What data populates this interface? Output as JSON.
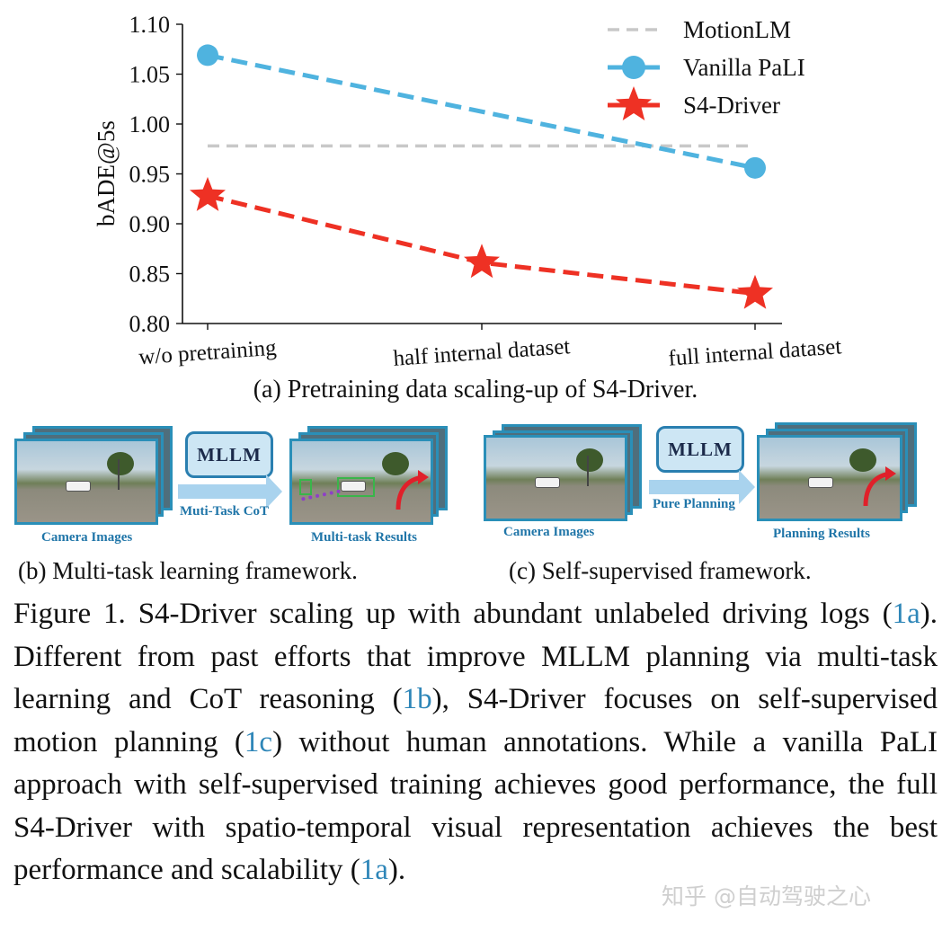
{
  "chart_data": {
    "type": "line",
    "categories": [
      "w/o pretraining",
      "half internal dataset",
      "full internal dataset"
    ],
    "ylabel": "bADE@5s",
    "xlabel": "",
    "ylim": [
      0.8,
      1.1
    ],
    "yticks": [
      "0.80",
      "0.85",
      "0.90",
      "0.95",
      "1.00",
      "1.05",
      "1.10"
    ],
    "series": [
      {
        "name": "MotionLM",
        "style": "dashed-reference",
        "color": "#c8c8c8",
        "values": [
          0.978,
          0.978,
          0.978
        ]
      },
      {
        "name": "Vanilla PaLI",
        "style": "dashed-circle",
        "color": "#4fb3df",
        "points": [
          {
            "category": "w/o pretraining",
            "value": 1.069
          },
          {
            "category": "full internal dataset",
            "value": 0.956
          }
        ]
      },
      {
        "name": "S4-Driver",
        "style": "dashed-star",
        "color": "#ee3124",
        "values": [
          0.928,
          0.861,
          0.83
        ]
      }
    ],
    "caption": "(a) Pretraining data scaling-up of S4-Driver."
  },
  "panel_b": {
    "mllm_label": "MLLM",
    "arrow_label": "Muti-Task CoT",
    "input_label": "Camera Images",
    "output_label": "Multi-task Results",
    "caption": "(b) Multi-task learning framework."
  },
  "panel_c": {
    "mllm_label": "MLLM",
    "arrow_label": "Pure Planning",
    "input_label": "Camera Images",
    "output_label": "Planning Results",
    "caption": "(c) Self-supervised framework."
  },
  "figure_caption": {
    "seg1": "Figure 1.  S4-Driver scaling up with abundant unlabeled driving logs (",
    "ref1": "1a",
    "seg2": ").  Different from past efforts that improve MLLM planning via multi-task learning and CoT reasoning (",
    "ref2": "1b",
    "seg3": "), S4-Driver focuses on self-supervised motion planning (",
    "ref3": "1c",
    "seg4": ") without human annotations.  While a vanilla PaLI approach with self-supervised training achieves good performance, the full S4-Driver with spatio-temporal visual representation achieves the best performance and scalability (",
    "ref4": "1a",
    "seg5": ")."
  },
  "watermark": "知乎 @自动驾驶之心"
}
